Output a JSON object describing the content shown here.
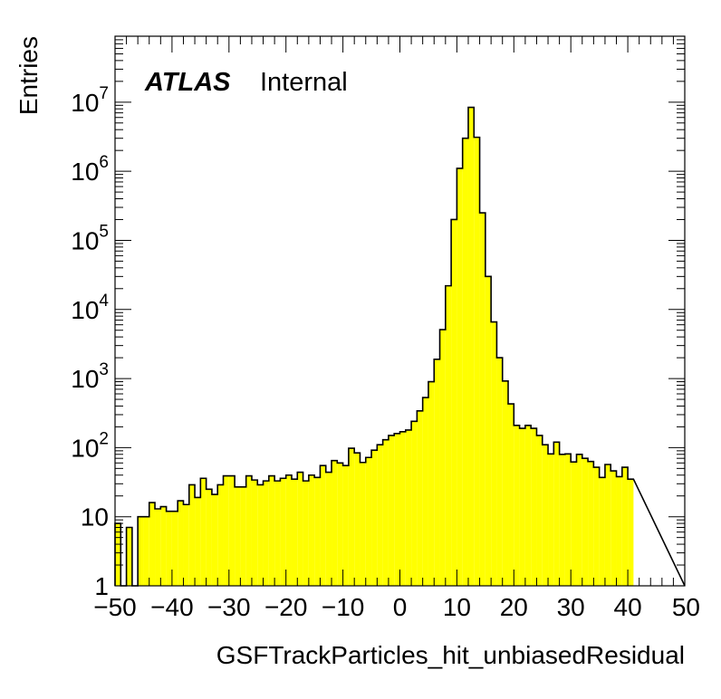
{
  "chart_data": {
    "type": "bar",
    "xlabel": "GSFTrackParticles_hit_unbiasedResidual",
    "ylabel": "Entries",
    "xlim": [
      -50,
      50
    ],
    "ylim": [
      1,
      90000000
    ],
    "log_y": true,
    "grid": false,
    "atlas_label": "ATLAS",
    "atlas_status": "Internal",
    "fill_color": "#ffff00",
    "line_color": "#000000",
    "bin_edges_start": -50,
    "bin_width": 1,
    "x_ticks": [
      "−50",
      "−40",
      "−30",
      "−20",
      "−10",
      "0",
      "10",
      "20",
      "30",
      "40",
      "50"
    ],
    "y_ticks": [
      {
        "value": 1,
        "base": "1",
        "exp": ""
      },
      {
        "value": 10,
        "base": "10",
        "exp": ""
      },
      {
        "value": 100,
        "base": "10",
        "exp": "2"
      },
      {
        "value": 1000,
        "base": "10",
        "exp": "3"
      },
      {
        "value": 10000,
        "base": "10",
        "exp": "4"
      },
      {
        "value": 100000,
        "base": "10",
        "exp": "5"
      },
      {
        "value": 1000000,
        "base": "10",
        "exp": "6"
      },
      {
        "value": 10000000,
        "base": "10",
        "exp": "7"
      }
    ],
    "values": [
      8,
      0,
      7,
      0,
      10,
      10,
      16,
      13,
      14,
      12,
      12,
      17,
      15,
      29,
      19,
      36,
      25,
      21,
      29,
      39,
      39,
      27,
      27,
      39,
      34,
      29,
      33,
      39,
      33,
      36,
      40,
      35,
      44,
      33,
      40,
      37,
      55,
      44,
      65,
      60,
      55,
      98,
      84,
      61,
      72,
      92,
      110,
      130,
      150,
      160,
      170,
      180,
      240,
      340,
      530,
      900,
      1900,
      5100,
      22000,
      200000,
      1100000,
      3000000,
      8400000,
      3100000,
      250000,
      30000,
      6600,
      2000,
      920,
      430,
      210,
      190,
      210,
      190,
      150,
      110,
      81,
      120,
      80,
      81,
      62,
      80,
      70,
      63,
      52,
      37,
      57,
      46,
      38,
      52,
      35
    ]
  }
}
